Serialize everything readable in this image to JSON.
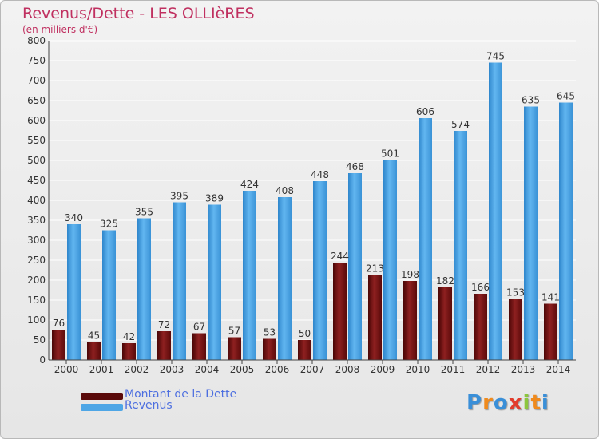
{
  "chart_data": {
    "type": "bar",
    "title": "Revenus/Dette - LES OLLIèRES",
    "subtitle": "(en milliers d'€)",
    "xlabel": "",
    "ylabel": "",
    "ylim": [
      0,
      800
    ],
    "yticks": [
      0,
      50,
      100,
      150,
      200,
      250,
      300,
      350,
      400,
      450,
      500,
      550,
      600,
      650,
      700,
      750,
      800
    ],
    "grid": true,
    "legend_position": "bottom-left",
    "categories": [
      "2000",
      "2001",
      "2002",
      "2003",
      "2004",
      "2005",
      "2006",
      "2007",
      "2008",
      "2009",
      "2010",
      "2011",
      "2012",
      "2013",
      "2014"
    ],
    "series": [
      {
        "name": "Montant de la Dette",
        "color": "#7a1414",
        "values": [
          76,
          45,
          42,
          72,
          67,
          57,
          53,
          50,
          244,
          213,
          198,
          182,
          166,
          153,
          141
        ]
      },
      {
        "name": "Revenus",
        "color": "#4ea6e6",
        "values": [
          340,
          325,
          355,
          395,
          389,
          424,
          408,
          448,
          468,
          501,
          606,
          574,
          745,
          635,
          645
        ]
      }
    ]
  },
  "logo": {
    "letters": [
      "P",
      "r",
      "o",
      "x",
      "i",
      "t",
      "i"
    ],
    "colors": [
      "#3a8fd8",
      "#f08a1c",
      "#3a8fd8",
      "#e23c2c",
      "#8cc63e",
      "#f08a1c",
      "#3a8fd8"
    ]
  }
}
